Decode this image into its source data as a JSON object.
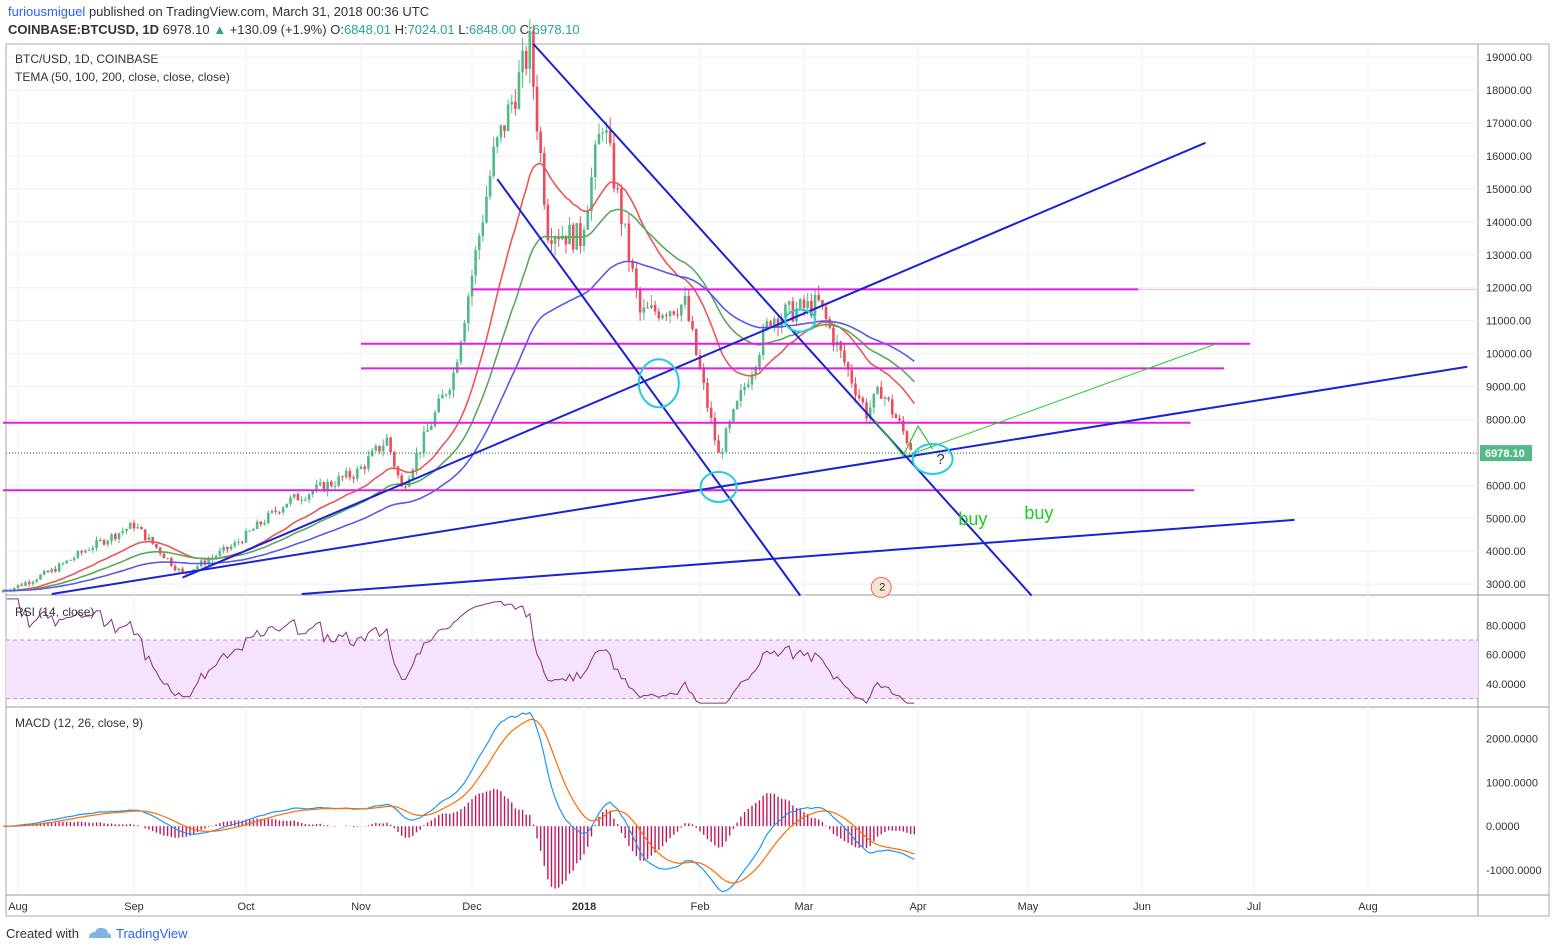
{
  "header": {
    "author": "furiousmiguel",
    "published": "published on TradingView.com, March 31, 2018 00:36 UTC",
    "symbol": "COINBASE:BTCUSD, 1D",
    "last": "6978.10",
    "change_arrow": "▲",
    "change": "+130.09 (+1.9%)",
    "o_label": "O:",
    "o": "6848.01",
    "h_label": "H:",
    "h": "7024.01",
    "l_label": "L:",
    "l": "6848.00",
    "c_label": "C:",
    "c": "6978.10"
  },
  "legend": {
    "main_title": "BTC/USD, 1D, COINBASE",
    "tema": "TEMA (50, 100, 200, close, close, close)",
    "rsi": "RSI (14, close)",
    "macd": "MACD (12, 26, close, 9)"
  },
  "footer": {
    "created_with": "Created with",
    "brand": "TradingView"
  },
  "colors": {
    "up": "#53b987",
    "down": "#eb4d5c",
    "trend": "#1922d6",
    "magenta": "#e31ce3",
    "tema_red": "#e95757",
    "tema_green": "#5aa95a",
    "tema_blue": "#5a5ae6",
    "rsi_line": "#8a2a8a",
    "rsi_band": "#f4e3fa",
    "macd": "#2196f3",
    "signal": "#ff6d00",
    "hist": "#c2185b",
    "cyan": "#22cbe0",
    "buy": "#22cc22"
  },
  "chart_data": [
    {
      "type": "candlestick",
      "title": "BTC/USD, 1D, COINBASE",
      "x_ticks": [
        "Aug",
        "Sep",
        "Oct",
        "Nov",
        "Dec",
        "2018",
        "Feb",
        "Mar",
        "Apr",
        "May",
        "Jun",
        "Jul",
        "Aug"
      ],
      "y_ticks": [
        "3000.00",
        "4000.00",
        "5000.00",
        "6000.00",
        "7000.00",
        "8000.00",
        "9000.00",
        "10000.00",
        "11000.00",
        "12000.00",
        "13000.00",
        "14000.00",
        "15000.00",
        "16000.00",
        "17000.00",
        "18000.00",
        "19000.00"
      ],
      "ylim": [
        2700,
        19400
      ],
      "last_price_label": "6978.10",
      "approx_close_path": [
        [
          "2017-07-28",
          2750
        ],
        [
          "2017-08-10",
          3400
        ],
        [
          "2017-08-20",
          4100
        ],
        [
          "2017-09-01",
          4800
        ],
        [
          "2017-09-14",
          3300
        ],
        [
          "2017-09-28",
          4200
        ],
        [
          "2017-10-12",
          5500
        ],
        [
          "2017-10-31",
          6400
        ],
        [
          "2017-11-08",
          7400
        ],
        [
          "2017-11-12",
          5900
        ],
        [
          "2017-11-26",
          9400
        ],
        [
          "2017-12-07",
          16000
        ],
        [
          "2017-12-17",
          19300
        ],
        [
          "2017-12-22",
          13800
        ],
        [
          "2017-12-31",
          13500
        ],
        [
          "2018-01-06",
          17100
        ],
        [
          "2018-01-16",
          11200
        ],
        [
          "2018-01-28",
          11500
        ],
        [
          "2018-02-06",
          6900
        ],
        [
          "2018-02-20",
          11100
        ],
        [
          "2018-03-05",
          11500
        ],
        [
          "2018-03-18",
          8200
        ],
        [
          "2018-03-22",
          8900
        ],
        [
          "2018-03-31",
          6978.1
        ]
      ],
      "annotations": [
        "?",
        "buy",
        "buy"
      ],
      "tema_lines": [
        "red",
        "green",
        "blue"
      ]
    },
    {
      "type": "line",
      "title": "RSI (14, close)",
      "y_ticks": [
        "40.0000",
        "60.0000",
        "80.0000"
      ],
      "ylim": [
        25,
        100
      ],
      "band": [
        30,
        70
      ]
    },
    {
      "type": "line",
      "title": "MACD (12, 26, close, 9)",
      "y_ticks": [
        "-1000.0000",
        "0.0000",
        "1000.0000",
        "2000.0000"
      ],
      "ylim": [
        -1550,
        2700
      ],
      "series": []
    }
  ]
}
